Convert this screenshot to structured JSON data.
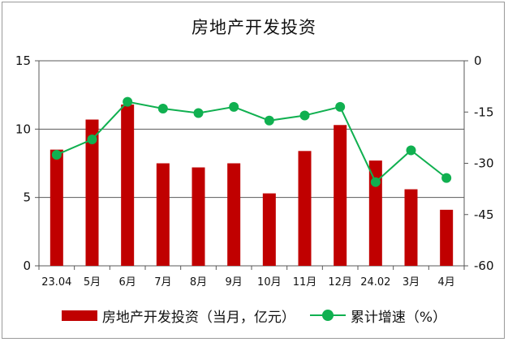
{
  "title": "房地产开发投资",
  "colors": {
    "bar": "#c00000",
    "line": "#10b050",
    "axis": "#595959",
    "grid": "#595959"
  },
  "legend": {
    "bar_label": "房地产开发投资（当月，亿元）",
    "line_label": "累计增速（%）"
  },
  "chart_data": {
    "type": "bar",
    "title": "房地产开发投资",
    "categories": [
      "23.04",
      "5月",
      "6月",
      "7月",
      "8月",
      "9月",
      "10月",
      "11月",
      "12月",
      "24.02",
      "3月",
      "4月"
    ],
    "series": [
      {
        "name": "房地产开发投资（当月，亿元）",
        "type": "bar",
        "axis": "left",
        "values": [
          8.5,
          10.7,
          11.8,
          7.5,
          7.2,
          7.5,
          5.3,
          8.4,
          10.3,
          7.7,
          5.6,
          4.1
        ]
      },
      {
        "name": "累计增速（%）",
        "type": "line",
        "axis": "right",
        "values": [
          -27.5,
          -23.0,
          -12.0,
          -14.0,
          -15.3,
          -13.5,
          -17.5,
          -16.0,
          -13.5,
          -35.5,
          -26.2,
          -34.3
        ]
      }
    ],
    "y_left": {
      "min": 0,
      "max": 15,
      "ticks": [
        0,
        5,
        10,
        15
      ]
    },
    "y_right": {
      "min": -60,
      "max": 0,
      "ticks": [
        -60,
        -45,
        -30,
        -15,
        0
      ]
    },
    "grid": true,
    "legend_position": "bottom"
  }
}
